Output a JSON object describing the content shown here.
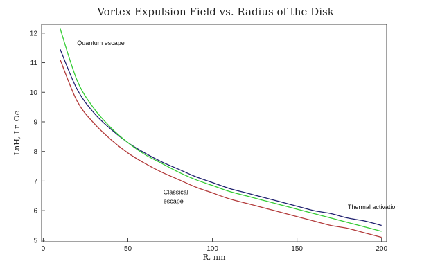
{
  "chart_data": {
    "type": "line",
    "title": "Vortex Expulsion Field vs. Radius of the Disk",
    "xlabel": "R, nm",
    "ylabel": "LnH, Ln Oe",
    "xlim": [
      -1,
      203
    ],
    "ylim": [
      4.95,
      12.3
    ],
    "xticks": [
      0,
      50,
      100,
      150,
      200
    ],
    "yticks": [
      5,
      6,
      7,
      8,
      9,
      10,
      11,
      12
    ],
    "grid": false,
    "x": [
      10,
      20,
      30,
      40,
      50,
      60,
      70,
      80,
      90,
      100,
      110,
      120,
      130,
      140,
      150,
      160,
      170,
      180,
      190,
      200
    ],
    "series": [
      {
        "color": "#1e1f6e",
        "values": [
          11.45,
          10.1,
          9.3,
          8.75,
          8.3,
          7.95,
          7.65,
          7.4,
          7.15,
          6.95,
          6.75,
          6.6,
          6.45,
          6.3,
          6.15,
          6.0,
          5.9,
          5.75,
          5.65,
          5.5
        ]
      },
      {
        "color": "#33cc33",
        "values": [
          12.15,
          10.4,
          9.45,
          8.8,
          8.3,
          7.9,
          7.6,
          7.3,
          7.05,
          6.85,
          6.65,
          6.5,
          6.35,
          6.2,
          6.05,
          5.9,
          5.75,
          5.6,
          5.45,
          5.3
        ]
      },
      {
        "color": "#b23a3a",
        "values": [
          11.1,
          9.7,
          8.95,
          8.4,
          7.95,
          7.6,
          7.3,
          7.05,
          6.8,
          6.6,
          6.4,
          6.25,
          6.1,
          5.95,
          5.8,
          5.65,
          5.5,
          5.4,
          5.25,
          5.1
        ]
      }
    ],
    "annotations": [
      {
        "text": "Quantum escape",
        "x": 20,
        "y": 11.6
      },
      {
        "text": "Classical",
        "x": 71,
        "y": 6.55
      },
      {
        "text": "escape",
        "x": 71,
        "y": 6.25
      },
      {
        "text": "Thermal activation",
        "x": 180,
        "y": 6.05
      }
    ]
  }
}
